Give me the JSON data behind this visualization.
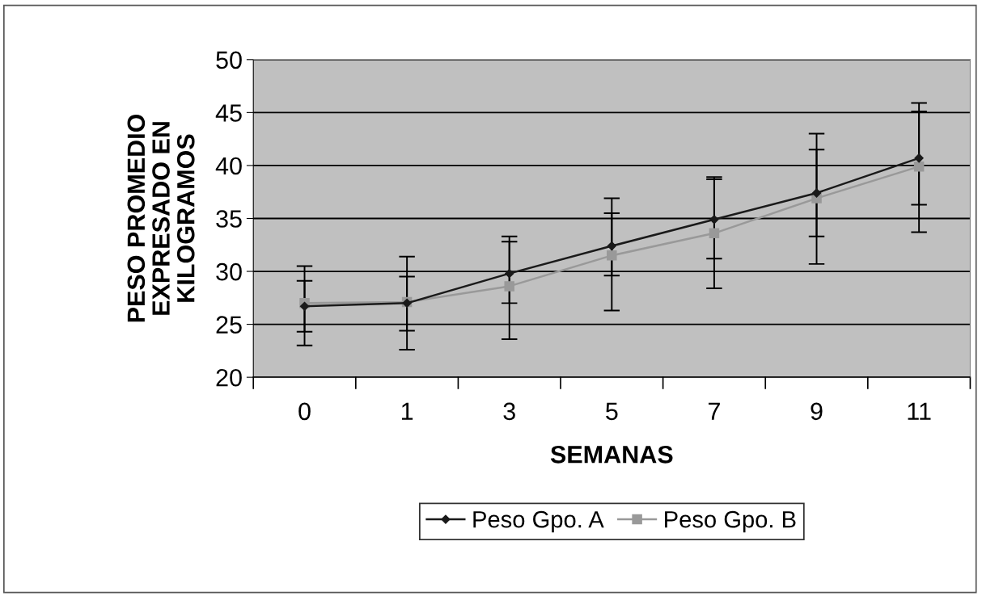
{
  "chart_data": {
    "type": "line",
    "xlabel": "SEMANAS",
    "ylabel": "PESO PROMEDIO\nEXPRESADO EN\nKILOGRAMOS",
    "categories": [
      "0",
      "1",
      "3",
      "5",
      "7",
      "9",
      "11"
    ],
    "series": [
      {
        "name": "Peso Gpo. A",
        "color": "#1a1a1a",
        "marker": "diamond",
        "values": [
          26.7,
          27.0,
          29.8,
          32.4,
          34.9,
          37.4,
          40.7
        ],
        "errors": [
          [
            23.0,
            30.5
          ],
          [
            22.6,
            31.4
          ],
          [
            27.0,
            33.3
          ],
          [
            29.6,
            36.9
          ],
          [
            31.2,
            38.9
          ],
          [
            33.3,
            43.0
          ],
          [
            36.3,
            45.9
          ]
        ]
      },
      {
        "name": "Peso Gpo. B",
        "color": "#999999",
        "marker": "square",
        "values": [
          27.0,
          27.1,
          28.6,
          31.5,
          33.6,
          36.9,
          39.9
        ],
        "errors": [
          [
            24.3,
            29.1
          ],
          [
            24.4,
            29.5
          ],
          [
            23.6,
            32.8
          ],
          [
            26.3,
            35.5
          ],
          [
            28.4,
            38.7
          ],
          [
            30.7,
            41.5
          ],
          [
            33.7,
            45.1
          ]
        ]
      }
    ],
    "ylim": [
      20,
      50
    ],
    "yticks": [
      20,
      25,
      30,
      35,
      40,
      45,
      50
    ],
    "grid": "y",
    "legend": "bottom"
  }
}
